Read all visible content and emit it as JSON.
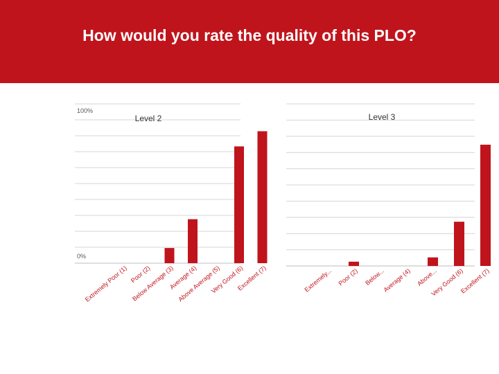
{
  "slide": {
    "title": "How would you rate the quality of this PLO?"
  },
  "colors": {
    "header": "#c0141c",
    "bar": "#c0141c",
    "label": "#c0141c",
    "grid": "#d4d4d4"
  },
  "chart_data": [
    {
      "type": "bar",
      "title": "Level 2",
      "categories": [
        "Extremely Poor (1)",
        "Poor (2)",
        "Below Average (3)",
        "Average (4)",
        "Above Average (5)",
        "Very Good (6)",
        "Excellent (7)"
      ],
      "values": [
        0,
        0,
        10,
        29,
        0,
        77,
        87
      ],
      "ylim": [
        0,
        100
      ],
      "ytick_labels": [
        "100%",
        "0%"
      ],
      "grid": true
    },
    {
      "type": "bar",
      "title": "Level 3",
      "categories": [
        "Extremely...",
        "Poor (2)",
        "Below...",
        "Average (4)",
        "Above...",
        "Very Good (6)",
        "Excellent (7)"
      ],
      "values": [
        0,
        3,
        0,
        0,
        6,
        31,
        85
      ],
      "ylim": [
        0,
        100
      ],
      "ytick_labels": [],
      "grid": true
    }
  ]
}
